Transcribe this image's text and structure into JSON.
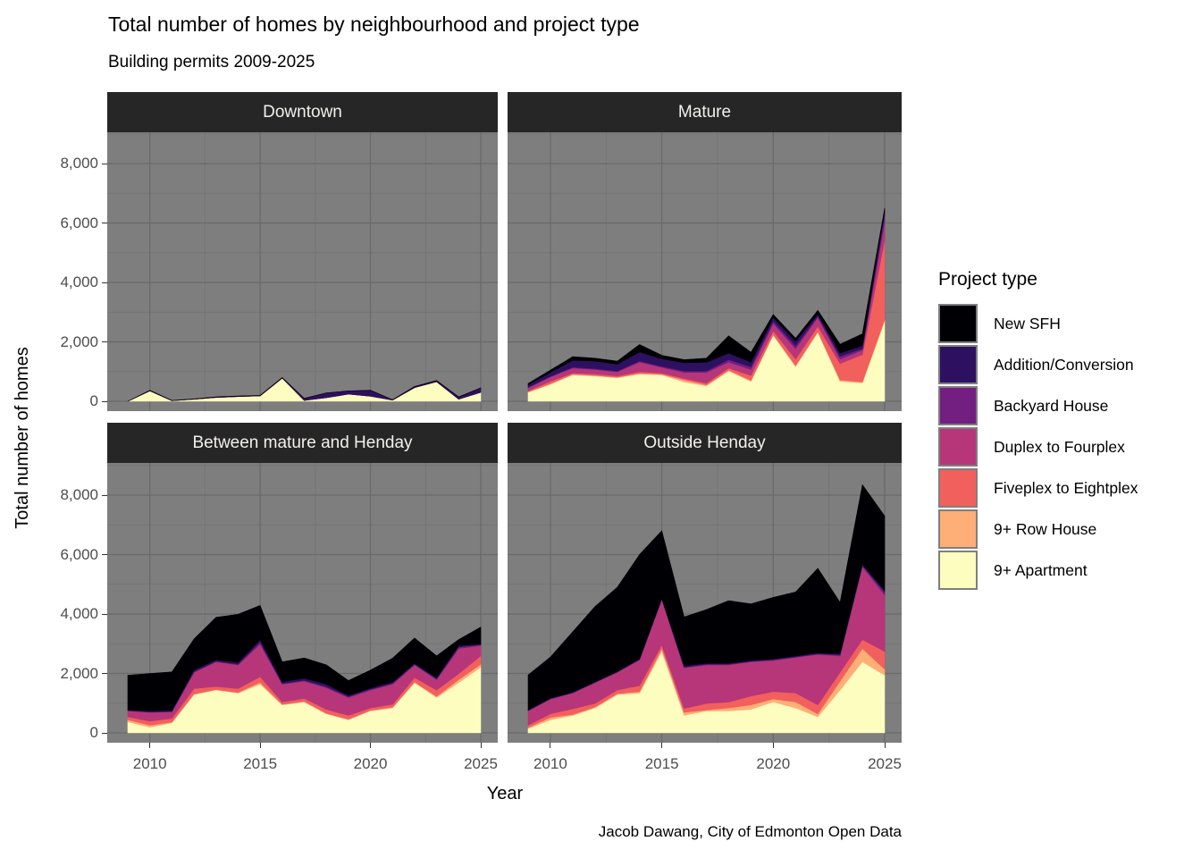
{
  "page": {
    "title": "Total number of homes by neighbourhood and project type",
    "subtitle": "Building permits 2009-2025",
    "caption": "Jacob Dawang, City of Edmonton Open Data",
    "x_axis_title": "Year",
    "y_axis_title": "Total number of homes"
  },
  "axes": {
    "x_tick_labels": [
      "2010",
      "2015",
      "2020",
      "2025"
    ],
    "x_tick_values": [
      2010,
      2015,
      2020,
      2025
    ],
    "x_minor_values": [
      2012.5,
      2017.5,
      2022.5
    ],
    "y_tick_labels": [
      "0",
      "2,000",
      "4,000",
      "6,000",
      "8,000"
    ],
    "y_tick_values": [
      0,
      2000,
      4000,
      6000,
      8000
    ],
    "y_minor_values": [
      1000,
      3000,
      5000,
      7000,
      9000
    ]
  },
  "legend": {
    "title": "Project type",
    "items": [
      {
        "key": "sfh",
        "label": "New SFH",
        "color": "#000004"
      },
      {
        "key": "addition",
        "label": "Addition/Conversion",
        "color": "#2D1160"
      },
      {
        "key": "backyard",
        "label": "Backyard House",
        "color": "#721F81"
      },
      {
        "key": "duplex",
        "label": "Duplex to Fourplex",
        "color": "#B63679"
      },
      {
        "key": "fiveplex",
        "label": "Fiveplex to Eightplex",
        "color": "#F1605D"
      },
      {
        "key": "rowhouse9",
        "label": "9+ Row House",
        "color": "#FEAF77"
      },
      {
        "key": "apartment9",
        "label": "9+ Apartment",
        "color": "#FCFDBF"
      }
    ]
  },
  "theme_colors": {
    "panel_background": "#7e7e7e",
    "strip_background": "#262626",
    "strip_text": "#f2f0ec",
    "grid_major": "#6a6a6a",
    "grid_minor": "#757575",
    "tick_text": "#4d4d4d",
    "tick_mark": "#333333"
  },
  "chart_data": {
    "type": "area",
    "title": "Total number of homes by neighbourhood and project type",
    "subtitle": "Building permits 2009-2025",
    "xlabel": "Year",
    "ylabel": "Total number of homes",
    "ylim": [
      0,
      9000
    ],
    "grid": true,
    "legend_position": "right",
    "stack_order_bottom_to_top": [
      "apartment9",
      "rowhouse9",
      "fiveplex",
      "duplex",
      "backyard",
      "addition",
      "sfh"
    ],
    "years": [
      2009,
      2010,
      2011,
      2012,
      2013,
      2014,
      2015,
      2016,
      2017,
      2018,
      2019,
      2020,
      2021,
      2022,
      2023,
      2024,
      2025
    ],
    "facets": [
      {
        "title": "Downtown",
        "series": {
          "apartment9": [
            0,
            350,
            20,
            70,
            130,
            160,
            180,
            780,
            30,
            120,
            240,
            170,
            40,
            460,
            660,
            70,
            300
          ],
          "rowhouse9": [
            0,
            0,
            0,
            0,
            0,
            0,
            0,
            0,
            0,
            0,
            0,
            0,
            0,
            0,
            0,
            0,
            0
          ],
          "fiveplex": [
            0,
            0,
            0,
            0,
            0,
            0,
            0,
            0,
            0,
            0,
            0,
            0,
            0,
            0,
            0,
            0,
            0
          ],
          "duplex": [
            0,
            0,
            0,
            0,
            0,
            0,
            0,
            0,
            0,
            0,
            0,
            0,
            0,
            0,
            0,
            0,
            0
          ],
          "backyard": [
            0,
            0,
            0,
            0,
            0,
            0,
            0,
            0,
            0,
            0,
            0,
            0,
            0,
            0,
            0,
            0,
            0
          ],
          "addition": [
            0,
            10,
            5,
            5,
            10,
            10,
            10,
            15,
            70,
            160,
            110,
            200,
            10,
            30,
            30,
            70,
            150
          ],
          "sfh": [
            0,
            10,
            5,
            5,
            10,
            10,
            10,
            5,
            0,
            0,
            0,
            0,
            0,
            10,
            10,
            10,
            0
          ]
        }
      },
      {
        "title": "Mature",
        "series": {
          "apartment9": [
            300,
            570,
            890,
            850,
            790,
            920,
            890,
            650,
            520,
            1020,
            670,
            2220,
            1170,
            2320,
            670,
            620,
            2700
          ],
          "rowhouse9": [
            20,
            20,
            20,
            20,
            20,
            20,
            20,
            70,
            30,
            30,
            30,
            30,
            30,
            30,
            50,
            30,
            50
          ],
          "fiveplex": [
            30,
            80,
            40,
            50,
            40,
            60,
            40,
            50,
            60,
            70,
            170,
            120,
            220,
            170,
            550,
            920,
            2680
          ],
          "duplex": [
            100,
            150,
            170,
            150,
            140,
            320,
            190,
            200,
            360,
            200,
            200,
            250,
            350,
            300,
            150,
            150,
            600
          ],
          "backyard": [
            20,
            20,
            30,
            30,
            30,
            40,
            40,
            50,
            50,
            80,
            90,
            80,
            100,
            50,
            100,
            50,
            240
          ],
          "addition": [
            80,
            130,
            230,
            250,
            230,
            300,
            250,
            280,
            290,
            220,
            160,
            120,
            150,
            70,
            100,
            100,
            130
          ],
          "sfh": [
            50,
            80,
            120,
            100,
            100,
            250,
            120,
            100,
            140,
            580,
            330,
            100,
            100,
            120,
            300,
            400,
            100
          ]
        }
      },
      {
        "title": "Between mature and Henday",
        "series": {
          "apartment9": [
            370,
            190,
            340,
            1290,
            1440,
            1340,
            1640,
            940,
            1040,
            640,
            440,
            740,
            840,
            1690,
            1190,
            1690,
            2210
          ],
          "rowhouse9": [
            70,
            70,
            20,
            20,
            20,
            20,
            60,
            20,
            20,
            20,
            20,
            20,
            20,
            20,
            40,
            100,
            100
          ],
          "fiveplex": [
            100,
            130,
            130,
            180,
            100,
            130,
            190,
            80,
            100,
            130,
            130,
            80,
            100,
            150,
            210,
            200,
            280
          ],
          "duplex": [
            200,
            300,
            220,
            550,
            830,
            800,
            1100,
            600,
            580,
            730,
            600,
            600,
            680,
            430,
            350,
            850,
            350
          ],
          "backyard": [
            10,
            10,
            10,
            20,
            20,
            20,
            70,
            20,
            30,
            40,
            30,
            30,
            30,
            20,
            30,
            50,
            30
          ],
          "addition": [
            30,
            40,
            40,
            60,
            50,
            60,
            80,
            60,
            70,
            80,
            40,
            40,
            40,
            30,
            40,
            50,
            20
          ],
          "sfh": [
            1160,
            1260,
            1290,
            1040,
            1430,
            1620,
            1150,
            670,
            680,
            650,
            500,
            600,
            800,
            850,
            730,
            200,
            570
          ]
        }
      },
      {
        "title": "Outside Henday",
        "series": {
          "apartment9": [
            140,
            440,
            590,
            840,
            1290,
            1340,
            2740,
            590,
            740,
            740,
            790,
            1040,
            840,
            540,
            1440,
            2390,
            1940
          ],
          "rowhouse9": [
            40,
            80,
            30,
            30,
            30,
            50,
            100,
            100,
            30,
            100,
            150,
            100,
            200,
            100,
            300,
            450,
            200
          ],
          "fiveplex": [
            80,
            120,
            190,
            120,
            120,
            200,
            120,
            130,
            220,
            200,
            300,
            250,
            300,
            300,
            300,
            300,
            600
          ],
          "duplex": [
            480,
            500,
            530,
            700,
            600,
            870,
            1530,
            1370,
            1300,
            1250,
            1150,
            1050,
            1200,
            1700,
            550,
            2450,
            1900
          ],
          "backyard": [
            10,
            10,
            10,
            10,
            10,
            10,
            10,
            20,
            20,
            20,
            20,
            20,
            20,
            20,
            40,
            50,
            100
          ],
          "addition": [
            20,
            20,
            20,
            20,
            20,
            30,
            30,
            50,
            30,
            30,
            30,
            30,
            30,
            30,
            30,
            30,
            50
          ],
          "sfh": [
            1180,
            1380,
            2030,
            2530,
            2830,
            3500,
            2270,
            1640,
            1810,
            2110,
            1900,
            2070,
            2150,
            2850,
            1730,
            2680,
            2510
          ]
        }
      }
    ]
  }
}
